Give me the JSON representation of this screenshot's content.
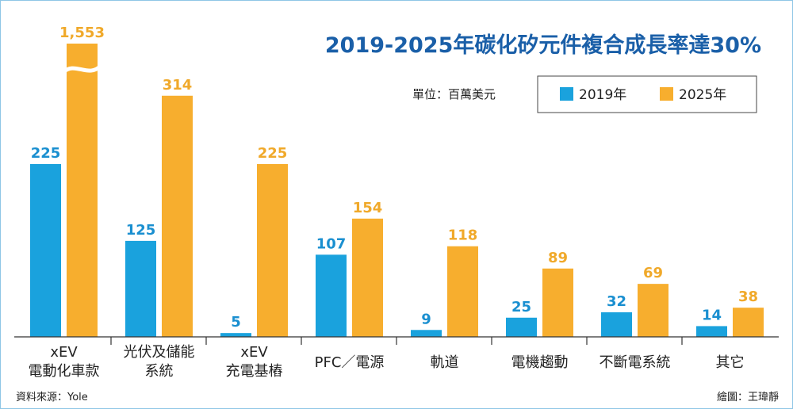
{
  "colors": {
    "s2019": "#1aa2dd",
    "s2025": "#f7ae2e",
    "title": "#1a5fa8",
    "label2019": "#1a8fd0",
    "label2025": "#f0a92a",
    "frame": "#8fc6e6"
  },
  "chart_data": {
    "type": "bar",
    "title": "2019-2025年碳化矽元件複合成長率達30%",
    "unit_label": "單位：百萬美元",
    "legend_position": "top-right",
    "grid": false,
    "categories": [
      [
        "xEV",
        "電動化車款"
      ],
      [
        "光伏及儲能",
        "系統"
      ],
      [
        "xEV",
        "充電基樁"
      ],
      [
        "PFC／電源"
      ],
      [
        "軌道"
      ],
      [
        "電機趨動"
      ],
      [
        "不斷電系統"
      ],
      [
        "其它"
      ]
    ],
    "series": [
      {
        "name": "2019年",
        "values": [
          225,
          125,
          5,
          107,
          9,
          25,
          32,
          14
        ],
        "labels": [
          "225",
          "125",
          "5",
          "107",
          "9",
          "25",
          "32",
          "14"
        ]
      },
      {
        "name": "2025年",
        "values": [
          1553,
          314,
          225,
          154,
          118,
          89,
          69,
          38
        ],
        "labels": [
          "1,553",
          "314",
          "225",
          "154",
          "118",
          "89",
          "69",
          "38"
        ]
      }
    ],
    "axis_break": {
      "series": 1,
      "category": 0
    }
  },
  "footer": {
    "source": "資料來源：Yole",
    "credit": "繪圖：王瑋靜"
  }
}
